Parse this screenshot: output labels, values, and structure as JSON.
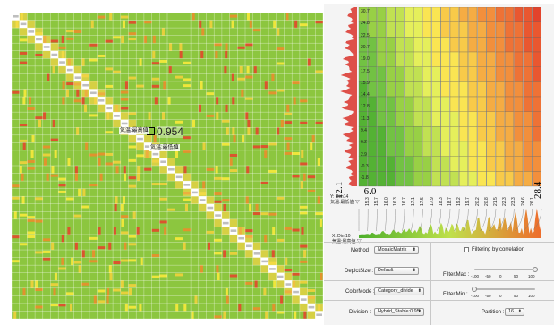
{
  "matrix": {
    "background_color": "#8cc63f",
    "correlation_value": "0.954",
    "callout_row_var": "気温:最高値",
    "callout_col_var": "気温:最低値"
  },
  "mosaic": {
    "y_axis_ticks": [
      "30.7",
      "24.8",
      "22.5",
      "20.7",
      "19.0",
      "17.5",
      "15.9",
      "14.4",
      "12.8",
      "11.3",
      "9.4",
      "6.2",
      "2.9",
      "-0.3",
      "-1.8"
    ],
    "y_bottom_value": "-6.0",
    "x_left_value": "12.1",
    "x_right_value": "28.4",
    "x_axis_ticks": [
      "15.3",
      "15.7",
      "16.0",
      "16.3",
      "16.7",
      "17.1",
      "17.5",
      "17.9",
      "18.3",
      "18.7",
      "19.2",
      "19.7",
      "20.2",
      "20.8",
      "21.5",
      "22.3",
      "23.3",
      "24.6",
      "26.1"
    ],
    "y_var_line1": "Y: Dim14",
    "y_var_line2": "気温:最低値 ▽",
    "x_var_line1": "X: Dim10",
    "x_var_line2": "気温:最高値 ▽"
  },
  "controls": {
    "method_label": "Method :",
    "method_value": "MosaicMatrix",
    "filter_corr_label": "Filtering by correlation",
    "depict_size_label": "DepictSize :",
    "depict_size_value": "Default",
    "filter_max_label": "Filter.Max :",
    "filter_max_ticks": [
      "-100",
      "-50",
      "0",
      "50",
      "100"
    ],
    "filter_max_value": 100,
    "color_mode_label": "ColorMode :",
    "color_mode_value": "Category_divide",
    "filter_min_label": "Filter.Min :",
    "filter_min_ticks": [
      "-100",
      "-50",
      "0",
      "50",
      "100"
    ],
    "filter_min_value": -100,
    "division_label": "Division :",
    "division_value": "Hybrid_Stable:0.95",
    "partition_label": "Partition :",
    "partition_value": "16"
  }
}
